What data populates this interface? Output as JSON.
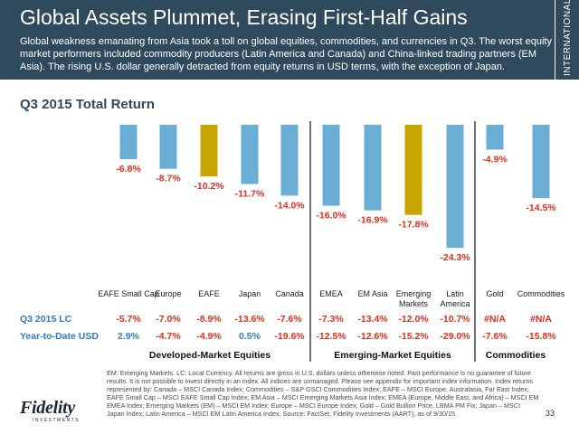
{
  "header": {
    "title": "Global Assets Plummet, Erasing First-Half Gains",
    "subtitle": "Global weakness emanating from Asia took a toll on global equities, commodities, and currencies in Q3. The worst equity market performers included commodity producers (Latin America and Canada) and China-linked trading partners (EM Asia). The rising U.S. dollar generally detracted from equity returns in USD terms, with the exception of Japan.",
    "side_tab": "INTERNATIONAL"
  },
  "colors": {
    "header_bg": "#2f4a5c",
    "bar_blue": "#6aaed6",
    "bar_gold": "#c8a400",
    "row_label": "#2e7cc4",
    "value_red": "#e0301e",
    "value_blue": "#2e7cc4"
  },
  "chart_data": {
    "type": "bar",
    "title": "Q3 2015 Total Return",
    "categories": [
      "EAFE Small Cap",
      "Europe",
      "EAFE",
      "Japan",
      "Canada",
      "EMEA",
      "EM Asia",
      "Emerging Markets",
      "Latin America",
      "Gold",
      "Commodities"
    ],
    "values": [
      -6.8,
      -8.7,
      -10.2,
      -11.7,
      -14.0,
      -16.0,
      -16.9,
      -17.8,
      -24.3,
      -4.9,
      -14.5
    ],
    "value_labels": [
      "-6.8%",
      "-8.7%",
      "-10.2%",
      "-11.7%",
      "-14.0%",
      "-16.0%",
      "-16.9%",
      "-17.8%",
      "-24.3%",
      "-4.9%",
      "-14.5%"
    ],
    "highlight": [
      false,
      false,
      true,
      false,
      false,
      false,
      false,
      true,
      false,
      false,
      false
    ],
    "ylim": [
      -25,
      0
    ],
    "table": {
      "rows": [
        {
          "label": "Q3 2015 LC",
          "values": [
            "-5.7%",
            "-7.0%",
            "-8.9%",
            "-13.6%",
            "-7.6%",
            "-7.3%",
            "-13.4%",
            "-12.0%",
            "-10.7%",
            "#N/A",
            "#N/A"
          ]
        },
        {
          "label": "Year-to-Date USD",
          "values": [
            "2.9%",
            "-4.7%",
            "-4.9%",
            "0.5%",
            "-19.6%",
            "-12.5%",
            "-12.6%",
            "-15.2%",
            "-29.0%",
            "-7.6%",
            "-15.8%"
          ]
        }
      ]
    },
    "groups": [
      {
        "label": "Developed-Market Equities",
        "start": 0,
        "end": 4
      },
      {
        "label": "Emerging-Market Equities",
        "start": 5,
        "end": 8
      },
      {
        "label": "Commodities",
        "start": 9,
        "end": 10
      }
    ]
  },
  "footnote": "EM: Emerging Markets. LC: Local Currency. All returns are gross in U.S. dollars unless otherwise noted. Past performance is no guarantee of future results. It is not possible to invest directly in an index. All indices are unmanaged. Please see appendix for important index information. Index returns represented by: Canada – MSCI Canada Index; Commodities – S&P GSCI Commodities Index; EAFE – MSCI Europe, Australasia, Far East Index; EAFE Small Cap – MSCI EAFE Small Cap Index; EM Asia – MSCI Emerging Markets Asia Index; EMEA (Europe, Middle East, and Africa) – MSCI EM EMEA Index; Emerging Markets (EM) – MSCI EM Index; Europe – MSCI Europe Index; Gold – Gold Bullion Price, LBMA PM Fix; Japan – MSCI Japan Index; Latin America – MSCI EM Latin America Index. Source: FactSet, Fidelity Investments (AART), as of 9/30/15.",
  "page_number": "33",
  "logo": {
    "word": "Fidelity",
    "sub": "INVESTMENTS"
  }
}
